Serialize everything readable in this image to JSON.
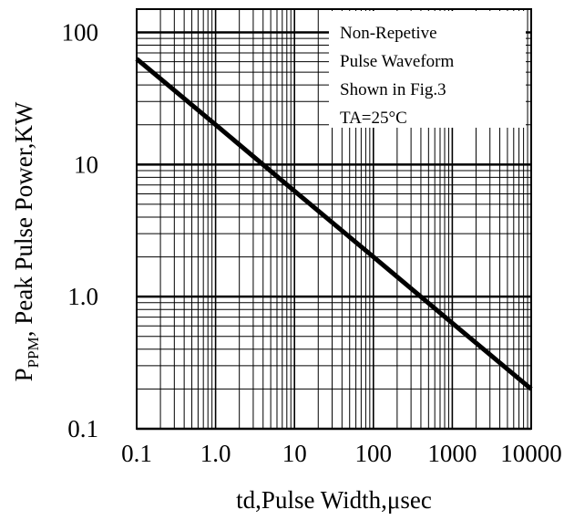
{
  "chart_data": {
    "type": "line",
    "x_scale": "log",
    "y_scale": "log",
    "xlim": [
      0.1,
      10000
    ],
    "ylim": [
      0.1,
      150
    ],
    "x_ticks": [
      "0.1",
      "1.0",
      "10",
      "100",
      "1000",
      "10000"
    ],
    "y_ticks": [
      "100",
      "10",
      "1.0",
      "0.1"
    ],
    "xlabel": "td,Pulse Width,μsec",
    "ylabel": {
      "prefix": "P",
      "subscript": "PPM",
      "suffix": ", Peak Pulse Power,KW"
    },
    "grid": true,
    "legend_position": "top-right",
    "annotation": [
      "Non-Repetive",
      "Pulse Waveform",
      "Shown in Fig.3",
      "TA=25°C"
    ],
    "series": [
      {
        "x": [
          0.1,
          1,
          10,
          100,
          1000,
          10000
        ],
        "y": [
          63,
          20,
          6.3,
          2.0,
          0.63,
          0.2
        ]
      }
    ],
    "colors": {
      "line": "#000000",
      "grid": "#000000",
      "background": "#ffffff"
    }
  }
}
